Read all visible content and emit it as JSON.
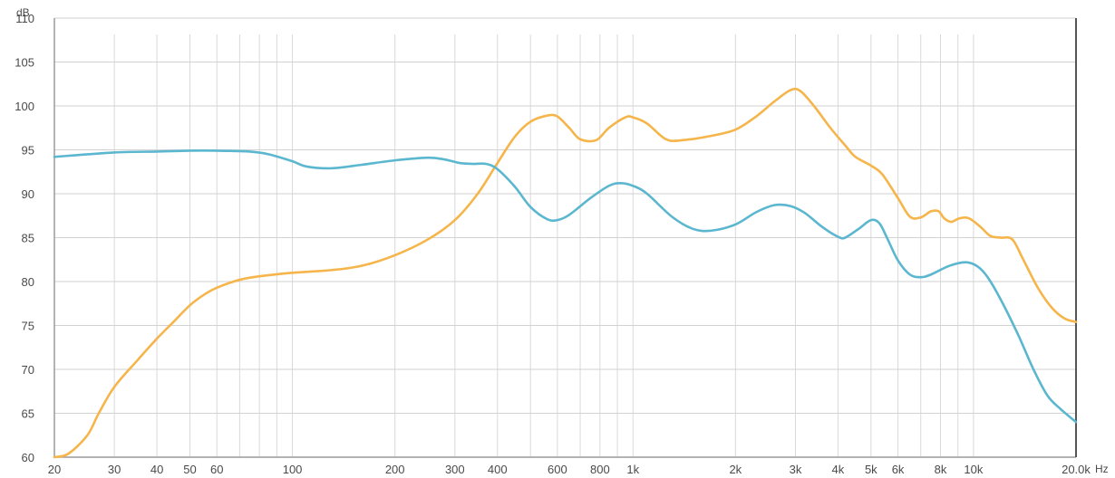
{
  "chart_data": {
    "type": "line",
    "title": "",
    "xlabel": "Hz",
    "ylabel": "dB",
    "x_scale": "log",
    "xlim": [
      20,
      20000
    ],
    "ylim": [
      60,
      110
    ],
    "grid": true,
    "legend": "none",
    "x_ticks": [
      {
        "value": 20,
        "label": "20"
      },
      {
        "value": 30,
        "label": "30"
      },
      {
        "value": 40,
        "label": "40"
      },
      {
        "value": 50,
        "label": "50"
      },
      {
        "value": 60,
        "label": "60"
      },
      {
        "value": 100,
        "label": "100"
      },
      {
        "value": 200,
        "label": "200"
      },
      {
        "value": 300,
        "label": "300"
      },
      {
        "value": 400,
        "label": "400"
      },
      {
        "value": 600,
        "label": "600"
      },
      {
        "value": 800,
        "label": "800"
      },
      {
        "value": 1000,
        "label": "1k"
      },
      {
        "value": 2000,
        "label": "2k"
      },
      {
        "value": 3000,
        "label": "3k"
      },
      {
        "value": 4000,
        "label": "4k"
      },
      {
        "value": 5000,
        "label": "5k"
      },
      {
        "value": 6000,
        "label": "6k"
      },
      {
        "value": 8000,
        "label": "8k"
      },
      {
        "value": 10000,
        "label": "10k"
      },
      {
        "value": 20000,
        "label": "20.0k"
      }
    ],
    "x_gridlines": [
      20,
      30,
      40,
      50,
      60,
      70,
      80,
      90,
      100,
      200,
      300,
      400,
      500,
      600,
      700,
      800,
      900,
      1000,
      2000,
      3000,
      4000,
      5000,
      6000,
      7000,
      8000,
      9000,
      10000,
      20000
    ],
    "y_ticks": [
      60,
      65,
      70,
      75,
      80,
      85,
      90,
      95,
      100,
      105,
      110
    ],
    "series": [
      {
        "color": "#f5b54a",
        "points": [
          [
            20,
            60.0
          ],
          [
            22,
            60.4
          ],
          [
            25,
            62.5
          ],
          [
            27,
            65.0
          ],
          [
            30,
            68.0
          ],
          [
            35,
            71.0
          ],
          [
            40,
            73.5
          ],
          [
            45,
            75.5
          ],
          [
            50,
            77.3
          ],
          [
            55,
            78.5
          ],
          [
            60,
            79.3
          ],
          [
            70,
            80.2
          ],
          [
            80,
            80.6
          ],
          [
            100,
            81.0
          ],
          [
            130,
            81.3
          ],
          [
            160,
            81.8
          ],
          [
            200,
            83.0
          ],
          [
            250,
            84.8
          ],
          [
            300,
            87.0
          ],
          [
            350,
            90.0
          ],
          [
            400,
            93.5
          ],
          [
            450,
            96.5
          ],
          [
            500,
            98.2
          ],
          [
            560,
            98.9
          ],
          [
            600,
            98.8
          ],
          [
            650,
            97.5
          ],
          [
            700,
            96.2
          ],
          [
            780,
            96.1
          ],
          [
            850,
            97.5
          ],
          [
            950,
            98.7
          ],
          [
            1000,
            98.7
          ],
          [
            1100,
            98.0
          ],
          [
            1250,
            96.2
          ],
          [
            1400,
            96.1
          ],
          [
            1700,
            96.6
          ],
          [
            2000,
            97.3
          ],
          [
            2300,
            98.8
          ],
          [
            2600,
            100.5
          ],
          [
            2900,
            101.8
          ],
          [
            3100,
            101.7
          ],
          [
            3400,
            100.0
          ],
          [
            3800,
            97.5
          ],
          [
            4200,
            95.5
          ],
          [
            4500,
            94.2
          ],
          [
            5000,
            93.2
          ],
          [
            5400,
            92.2
          ],
          [
            6000,
            89.5
          ],
          [
            6500,
            87.4
          ],
          [
            7000,
            87.3
          ],
          [
            7500,
            88.0
          ],
          [
            7900,
            88.0
          ],
          [
            8200,
            87.2
          ],
          [
            8600,
            86.8
          ],
          [
            9100,
            87.2
          ],
          [
            9700,
            87.2
          ],
          [
            10500,
            86.2
          ],
          [
            11200,
            85.2
          ],
          [
            12000,
            85.0
          ],
          [
            13000,
            84.8
          ],
          [
            14000,
            82.5
          ],
          [
            15500,
            79.2
          ],
          [
            17000,
            77.0
          ],
          [
            18500,
            75.8
          ],
          [
            20000,
            75.4
          ]
        ]
      },
      {
        "color": "#5bb7cf",
        "points": [
          [
            20,
            94.2
          ],
          [
            30,
            94.7
          ],
          [
            40,
            94.8
          ],
          [
            50,
            94.9
          ],
          [
            60,
            94.9
          ],
          [
            75,
            94.8
          ],
          [
            85,
            94.5
          ],
          [
            100,
            93.7
          ],
          [
            110,
            93.1
          ],
          [
            130,
            92.9
          ],
          [
            160,
            93.3
          ],
          [
            200,
            93.8
          ],
          [
            250,
            94.1
          ],
          [
            280,
            93.9
          ],
          [
            310,
            93.5
          ],
          [
            340,
            93.4
          ],
          [
            370,
            93.4
          ],
          [
            400,
            92.8
          ],
          [
            450,
            90.8
          ],
          [
            500,
            88.5
          ],
          [
            560,
            87.1
          ],
          [
            600,
            87.0
          ],
          [
            650,
            87.6
          ],
          [
            750,
            89.5
          ],
          [
            850,
            90.9
          ],
          [
            920,
            91.2
          ],
          [
            1000,
            90.9
          ],
          [
            1100,
            90.0
          ],
          [
            1300,
            87.4
          ],
          [
            1500,
            86.0
          ],
          [
            1700,
            85.8
          ],
          [
            2000,
            86.5
          ],
          [
            2300,
            87.9
          ],
          [
            2600,
            88.7
          ],
          [
            2900,
            88.6
          ],
          [
            3200,
            87.8
          ],
          [
            3600,
            86.2
          ],
          [
            4000,
            85.1
          ],
          [
            4200,
            85.0
          ],
          [
            4600,
            86.0
          ],
          [
            5000,
            87.0
          ],
          [
            5300,
            86.6
          ],
          [
            5600,
            84.8
          ],
          [
            6000,
            82.4
          ],
          [
            6500,
            80.8
          ],
          [
            7000,
            80.5
          ],
          [
            7500,
            80.8
          ],
          [
            8500,
            81.8
          ],
          [
            9500,
            82.2
          ],
          [
            10300,
            81.7
          ],
          [
            11000,
            80.5
          ],
          [
            12000,
            78.0
          ],
          [
            13500,
            74.0
          ],
          [
            15000,
            70.0
          ],
          [
            16500,
            67.0
          ],
          [
            18000,
            65.5
          ],
          [
            20000,
            64.0
          ]
        ]
      }
    ]
  }
}
